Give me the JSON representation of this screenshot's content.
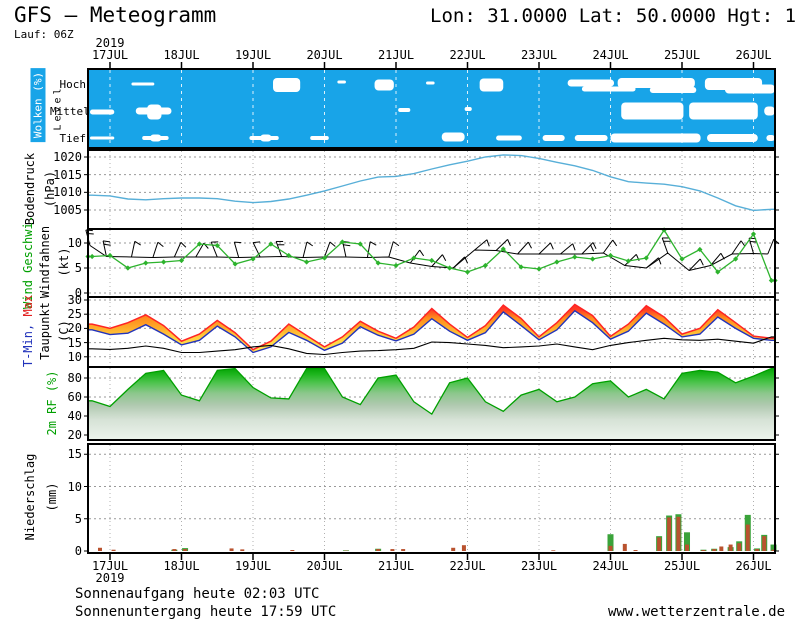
{
  "header": {
    "title": "GFS – Meteogramm",
    "location": "Lon: 31.0000 Lat: 50.0000 Hgt: 1",
    "run": "Lauf: 06Z"
  },
  "axis": {
    "year": "2019",
    "days": [
      "17JUL",
      "18JUL",
      "19JUL",
      "20JUL",
      "21JUL",
      "22JUL",
      "23JUL",
      "24JUL",
      "25JUL",
      "26JUL"
    ]
  },
  "footer": {
    "sunrise": "Sonnenaufgang heute 02:03 UTC",
    "sunset": "Sonnenuntergang heute 17:59 UTC",
    "website": "www.wetterzentrale.de"
  },
  "panels": {
    "clouds": {
      "label": "Wolken (%)",
      "level_label": "Level",
      "rows": [
        "Hoch",
        "Mittel",
        "Tief"
      ]
    },
    "pressure": {
      "label": "Bodendruck",
      "unit": "(hPa)"
    },
    "wind": {
      "label_speed": "Wind Geschwi.",
      "label_barbs": "Windfahnen",
      "unit": "(kt)"
    },
    "temperature": {
      "label_min": "T-Min,",
      "label_max": "Max",
      "label_dew": "Taupunkt",
      "unit": "(C)"
    },
    "humidity": {
      "label": "2m RF (%)"
    },
    "precipitation": {
      "label": "Niederschlag",
      "unit": "(mm)"
    }
  },
  "colors": {
    "cloud_bg": "#18a4e8",
    "pressure_line": "#58afd8",
    "wind_line": "#2db32d",
    "wind_label_green": "#00a000",
    "temp_red": "#ff2424",
    "temp_orange": "#ff9920",
    "temp_yellow": "#ffe558",
    "temp_min_line": "#2233bb",
    "dew_line": "#000000",
    "rh_green_dark": "#00a000",
    "rh_green_pale": "#ecf4ec",
    "precip_green": "#3aa33a",
    "precip_red": "#b9522e",
    "grid": "#999999"
  },
  "chart_data": [
    {
      "panel": "clouds",
      "type": "heatmap",
      "title": "Wolken (%)",
      "rows": [
        "Hoch",
        "Mittel",
        "Tief"
      ],
      "x_unit": "days after 17JUL 00UTC",
      "spans": {
        "Hoch": [
          [
            0.3,
            0.62,
            3,
            0
          ],
          [
            2.28,
            2.66,
            14,
            1
          ],
          [
            3.18,
            3.3,
            3,
            -2
          ],
          [
            3.7,
            3.97,
            11,
            1
          ],
          [
            4.42,
            4.54,
            3,
            -1
          ],
          [
            5.17,
            5.5,
            13,
            1
          ],
          [
            6.4,
            7.05,
            7,
            -1
          ],
          [
            6.6,
            7.35,
            5,
            5
          ],
          [
            7.1,
            8.18,
            10,
            -1
          ],
          [
            7.55,
            8.2,
            6,
            6
          ],
          [
            8.32,
            9.12,
            12,
            0
          ],
          [
            8.6,
            9.3,
            9,
            5
          ]
        ],
        "Mittel": [
          [
            -0.28,
            0.06,
            5,
            1
          ],
          [
            0.36,
            0.86,
            7,
            0
          ],
          [
            0.52,
            0.72,
            15,
            1
          ],
          [
            4.03,
            4.2,
            4,
            -1
          ],
          [
            4.96,
            5.06,
            4,
            -2
          ],
          [
            7.15,
            8.02,
            17,
            0
          ],
          [
            8.1,
            9.06,
            17,
            0
          ],
          [
            9.15,
            9.3,
            9,
            0
          ]
        ],
        "Tief": [
          [
            -0.28,
            0.06,
            3,
            0
          ],
          [
            0.45,
            0.82,
            4,
            0
          ],
          [
            0.56,
            0.72,
            7,
            0
          ],
          [
            1.95,
            2.36,
            4,
            0
          ],
          [
            2.1,
            2.26,
            7,
            0
          ],
          [
            2.8,
            3.06,
            4,
            0
          ],
          [
            4.64,
            4.96,
            9,
            -1
          ],
          [
            5.4,
            5.76,
            5,
            0
          ],
          [
            6.05,
            6.36,
            6,
            0
          ],
          [
            6.5,
            6.96,
            6,
            0
          ],
          [
            7.0,
            8.26,
            9,
            0
          ],
          [
            8.35,
            9.06,
            8,
            0
          ],
          [
            9.18,
            9.3,
            6,
            0
          ]
        ]
      }
    },
    {
      "panel": "pressure",
      "type": "line",
      "ylabel": "Bodendruck (hPa)",
      "yticks": [
        1005,
        1010,
        1015,
        1020
      ],
      "ylim": [
        1000,
        1022.5
      ],
      "x_start": -0.25,
      "x_step": 0.25,
      "values": [
        1009.2,
        1009.0,
        1008.1,
        1007.9,
        1008.2,
        1008.4,
        1008.4,
        1008.2,
        1007.5,
        1007.1,
        1007.4,
        1008.1,
        1009.2,
        1010.4,
        1011.8,
        1013.2,
        1014.3,
        1014.5,
        1015.3,
        1016.6,
        1017.8,
        1018.8,
        1020.0,
        1020.6,
        1020.4,
        1019.6,
        1018.5,
        1017.5,
        1016.2,
        1014.4,
        1013.0,
        1012.6,
        1012.3,
        1011.6,
        1010.4,
        1008.4,
        1006.2,
        1004.9,
        1005.2
      ]
    },
    {
      "panel": "wind",
      "type": "line",
      "ylabel": "Wind Geschwi. / Windfahnen (kt)",
      "yticks": [
        0,
        5,
        10
      ],
      "ylim": [
        -1,
        12.8
      ],
      "x_start": -0.25,
      "x_step": 0.25,
      "speed": [
        7.3,
        7.5,
        5.0,
        6.0,
        6.2,
        6.5,
        9.8,
        9.5,
        5.8,
        6.8,
        9.8,
        7.5,
        6.2,
        7.0,
        10.2,
        9.8,
        6.0,
        5.5,
        7.0,
        6.5,
        5.0,
        4.2,
        5.5,
        8.8,
        5.2,
        4.8,
        6.2,
        7.2,
        6.8,
        7.5,
        6.4,
        7.0,
        12.6,
        6.8,
        8.7,
        4.2,
        6.8,
        11.8,
        2.5
      ],
      "barbs": [
        [
          -0.28,
          9.5,
          -15,
          2
        ],
        [
          -0.05,
          7.3,
          -12,
          2
        ],
        [
          0.3,
          7.2,
          12,
          1
        ],
        [
          0.6,
          7.1,
          18,
          1
        ],
        [
          0.9,
          7.2,
          24,
          1
        ],
        [
          1.2,
          7.2,
          30,
          1
        ],
        [
          1.5,
          7.2,
          -22,
          2
        ],
        [
          1.8,
          7.1,
          -16,
          1
        ],
        [
          2.1,
          7.2,
          -26,
          1
        ],
        [
          2.4,
          7.3,
          -20,
          2
        ],
        [
          2.7,
          7.1,
          14,
          1
        ],
        [
          3.0,
          7.2,
          20,
          1
        ],
        [
          3.3,
          7.2,
          -12,
          2
        ],
        [
          3.6,
          7.1,
          10,
          1
        ],
        [
          3.9,
          7.2,
          16,
          1
        ],
        [
          4.2,
          6.0,
          36,
          1
        ],
        [
          4.5,
          5.3,
          42,
          1
        ],
        [
          4.8,
          5.0,
          46,
          1
        ],
        [
          5.1,
          8.6,
          50,
          1
        ],
        [
          5.4,
          8.5,
          46,
          1
        ],
        [
          5.7,
          7.8,
          42,
          1
        ],
        [
          6.0,
          7.8,
          46,
          1
        ],
        [
          6.3,
          7.8,
          50,
          1
        ],
        [
          6.6,
          7.8,
          44,
          2
        ],
        [
          6.9,
          8.0,
          36,
          1
        ],
        [
          7.2,
          5.5,
          46,
          1
        ],
        [
          7.5,
          5.0,
          50,
          1
        ],
        [
          7.8,
          8.0,
          -20,
          2
        ],
        [
          8.1,
          4.5,
          44,
          1
        ],
        [
          8.4,
          5.5,
          40,
          1
        ],
        [
          8.7,
          7.8,
          34,
          1
        ],
        [
          9.0,
          7.9,
          -16,
          2
        ],
        [
          9.2,
          7.8,
          22,
          1
        ]
      ]
    },
    {
      "panel": "temperature",
      "type": "area",
      "ylabel": "T-Min, Max / Taupunkt (C)",
      "yticks": [
        10,
        15,
        20,
        25,
        30
      ],
      "ylim": [
        6.4,
        30.8
      ],
      "x_start": -0.25,
      "x_step": 0.25,
      "t_max": [
        21.5,
        20.0,
        22.0,
        24.8,
        21.0,
        15.5,
        18.0,
        22.8,
        18.5,
        12.5,
        15.5,
        21.5,
        17.5,
        13.5,
        17.0,
        22.5,
        19.0,
        16.5,
        20.5,
        27.0,
        21.5,
        16.8,
        21.0,
        28.2,
        23.5,
        17.0,
        22.0,
        28.4,
        24.5,
        17.2,
        21.5,
        28.0,
        24.0,
        18.0,
        20.0,
        26.6,
        22.0,
        17.3,
        16.5
      ],
      "t_min": [
        19.5,
        17.8,
        18.3,
        21.3,
        18.0,
        14.2,
        15.8,
        20.8,
        17.0,
        11.5,
        13.5,
        18.6,
        15.8,
        12.3,
        14.8,
        20.6,
        17.6,
        15.6,
        18.0,
        23.4,
        19.0,
        15.8,
        18.5,
        25.8,
        21.0,
        16.0,
        19.5,
        26.2,
        22.0,
        16.2,
        19.0,
        25.4,
        21.5,
        17.0,
        18.0,
        24.0,
        20.0,
        16.5,
        15.8
      ],
      "dewpoint": [
        12.8,
        12.6,
        13.0,
        13.8,
        13.0,
        11.5,
        11.5,
        12.0,
        12.5,
        13.5,
        14.0,
        12.8,
        11.2,
        10.8,
        11.5,
        12.0,
        12.2,
        12.5,
        13.0,
        15.2,
        15.0,
        14.5,
        14.0,
        13.2,
        13.5,
        13.8,
        14.5,
        13.5,
        12.5,
        14.0,
        15.0,
        15.8,
        16.5,
        16.0,
        15.8,
        16.2,
        15.5,
        14.8,
        17.0
      ]
    },
    {
      "panel": "humidity",
      "type": "area",
      "ylabel": "2m RF (%)",
      "yticks": [
        20,
        40,
        60,
        80
      ],
      "ylim": [
        14.7,
        91.6
      ],
      "x_start": -0.25,
      "x_step": 0.25,
      "values": [
        56,
        50,
        68,
        85,
        88,
        62,
        56,
        88,
        95,
        70,
        59,
        58,
        90,
        93,
        60,
        52,
        80,
        83,
        55,
        42,
        75,
        80,
        55,
        45,
        62,
        68,
        55,
        60,
        74,
        77,
        60,
        68,
        58,
        85,
        88,
        86,
        75,
        82,
        95
      ]
    },
    {
      "panel": "precipitation",
      "type": "bar",
      "ylabel": "Niederschlag (mm)",
      "yticks": [
        0,
        5,
        10,
        15
      ],
      "ylim": [
        0,
        16.6
      ],
      "bars_format": "[day, total_mm_green, convective_mm_red]",
      "bars": [
        [
          -0.14,
          0,
          0.5
        ],
        [
          0.05,
          0,
          0.2
        ],
        [
          0.9,
          0.2,
          0.3
        ],
        [
          1.05,
          0.45,
          0.3
        ],
        [
          1.7,
          0,
          0.4
        ],
        [
          1.85,
          0,
          0.25
        ],
        [
          2.55,
          0,
          0.15
        ],
        [
          3.3,
          0.1,
          0.05
        ],
        [
          3.75,
          0.35,
          0.3
        ],
        [
          3.95,
          0,
          0.3
        ],
        [
          4.1,
          0,
          0.3
        ],
        [
          4.8,
          0,
          0.5
        ],
        [
          4.95,
          0,
          0.9
        ],
        [
          6.2,
          0,
          0.1
        ],
        [
          7.0,
          2.6,
          0.8
        ],
        [
          7.2,
          0,
          1.1
        ],
        [
          7.35,
          0,
          0.15
        ],
        [
          7.68,
          2.3,
          2.1
        ],
        [
          7.82,
          5.5,
          5.2
        ],
        [
          7.95,
          5.7,
          5.3
        ],
        [
          8.07,
          2.9,
          1.0
        ],
        [
          8.3,
          0.2,
          0.15
        ],
        [
          8.45,
          0.35,
          0.3
        ],
        [
          8.55,
          0,
          0.7
        ],
        [
          8.68,
          0.6,
          1.0
        ],
        [
          8.8,
          1.5,
          1.2
        ],
        [
          8.92,
          5.6,
          4.1
        ],
        [
          9.05,
          0.4,
          0.3
        ],
        [
          9.15,
          2.5,
          2.3
        ],
        [
          9.28,
          1.0,
          0.2
        ]
      ]
    }
  ]
}
